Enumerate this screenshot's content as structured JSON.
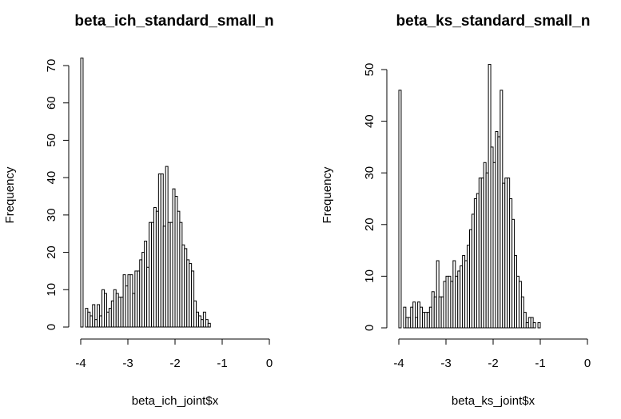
{
  "chart_data": [
    {
      "type": "bar",
      "subtype": "histogram",
      "title": "beta_ich_standard_small_n",
      "xlabel": "beta_ich_joint$x",
      "ylabel": "Frequency",
      "xlim": [
        -4,
        0
      ],
      "ylim": [
        0,
        70
      ],
      "xticks": [
        -4,
        -3,
        -2,
        -1,
        0
      ],
      "yticks": [
        0,
        10,
        20,
        30,
        40,
        50,
        60,
        70
      ],
      "bin_start": -4.0,
      "bin_width": 0.05,
      "values": [
        72,
        0,
        5,
        4,
        3,
        6,
        2,
        6,
        3,
        10,
        9,
        4,
        5,
        7,
        10,
        9,
        8,
        8,
        14,
        11,
        14,
        14,
        9,
        15,
        15,
        18,
        20,
        23,
        16,
        28,
        28,
        32,
        31,
        41,
        41,
        27,
        43,
        28,
        28,
        37,
        35,
        31,
        28,
        22,
        21,
        18,
        17,
        15,
        7,
        4,
        3,
        2,
        4,
        2,
        1
      ]
    },
    {
      "type": "bar",
      "subtype": "histogram",
      "title": "beta_ks_standard_small_n",
      "xlabel": "beta_ks_joint$x",
      "ylabel": "Frequency",
      "xlim": [
        -4,
        0
      ],
      "ylim": [
        0,
        50
      ],
      "xticks": [
        -4,
        -3,
        -2,
        -1,
        0
      ],
      "yticks": [
        0,
        10,
        20,
        30,
        40,
        50
      ],
      "bin_start": -4.0,
      "bin_width": 0.05,
      "values": [
        46,
        0,
        4,
        2,
        2,
        4,
        5,
        2,
        5,
        4,
        3,
        3,
        3,
        4,
        7,
        6,
        13,
        6,
        6,
        9,
        10,
        10,
        9,
        13,
        10,
        11,
        12,
        14,
        13,
        16,
        19,
        22,
        25,
        26,
        29,
        29,
        32,
        30,
        51,
        35,
        32,
        38,
        37,
        46,
        28,
        29,
        29,
        25,
        21,
        14,
        10,
        9,
        6,
        3,
        1,
        2,
        2,
        1,
        0,
        1
      ]
    }
  ]
}
